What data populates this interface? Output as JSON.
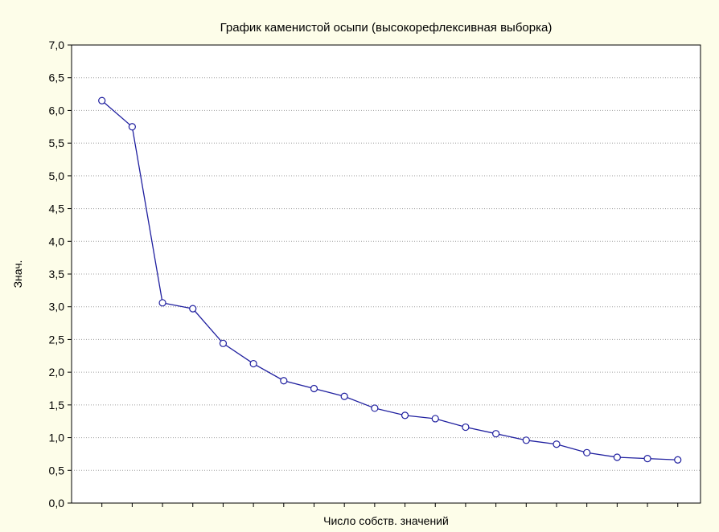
{
  "chart_data": {
    "type": "line",
    "title": "График каменистой осыпи (высокорефлексивная выборка)",
    "xlabel": "Число собств. значений",
    "ylabel": "Знач.",
    "x": [
      1,
      2,
      3,
      4,
      5,
      6,
      7,
      8,
      9,
      10,
      11,
      12,
      13,
      14,
      15,
      16,
      17,
      18,
      19,
      20
    ],
    "series": [
      {
        "values": [
          6.15,
          5.75,
          3.06,
          2.97,
          2.44,
          2.13,
          1.87,
          1.75,
          1.63,
          1.45,
          1.34,
          1.29,
          1.16,
          1.06,
          0.96,
          0.9,
          0.77,
          0.7,
          0.68,
          0.66
        ]
      }
    ],
    "yticks": [
      "0,0",
      "0,5",
      "1,0",
      "1,5",
      "2,0",
      "2,5",
      "3,0",
      "3,5",
      "4,0",
      "4,5",
      "5,0",
      "5,5",
      "6,0",
      "6,5",
      "7,0"
    ],
    "ylim": [
      0,
      7
    ],
    "xlim": [
      0,
      20.75
    ],
    "grid": true,
    "colors": {
      "line": "#1f1f9f",
      "marker_fill": "#ffffff",
      "background": "#fdfde9",
      "plot_background": "#ffffff",
      "grid": "#a0a0a0"
    }
  }
}
